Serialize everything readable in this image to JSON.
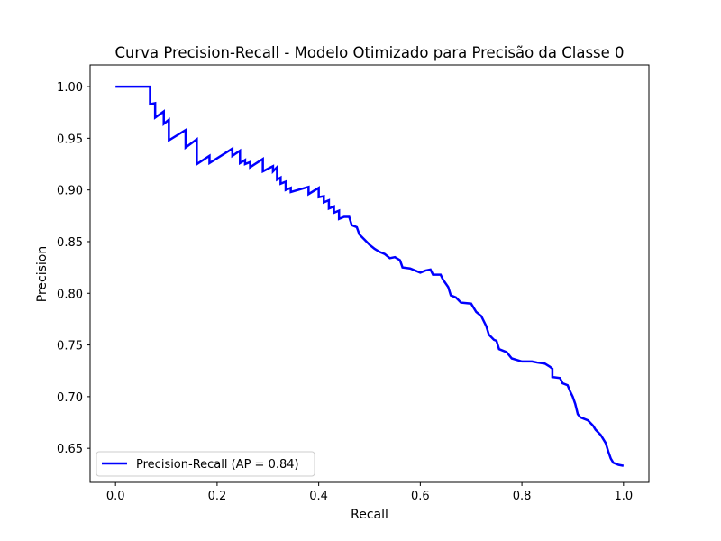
{
  "chart_data": {
    "type": "line",
    "title": "Curva Precision-Recall - Modelo Otimizado para Precisão da Classe 0",
    "xlabel": "Recall",
    "ylabel": "Precision",
    "xlim": [
      -0.05,
      1.05
    ],
    "ylim": [
      0.617,
      1.021
    ],
    "xticks": [
      0.0,
      0.2,
      0.4,
      0.6,
      0.8,
      1.0
    ],
    "xtick_labels": [
      "0.0",
      "0.2",
      "0.4",
      "0.6",
      "0.8",
      "1.0"
    ],
    "yticks": [
      0.65,
      0.7,
      0.75,
      0.8,
      0.85,
      0.9,
      0.95,
      1.0
    ],
    "ytick_labels": [
      "0.65",
      "0.70",
      "0.75",
      "0.80",
      "0.85",
      "0.90",
      "0.95",
      "1.00"
    ],
    "grid": false,
    "legend_position": "lower-left",
    "series": [
      {
        "name": "Precision-Recall (AP = 0.84)",
        "color": "#0000ff",
        "points": [
          [
            0.0,
            1.0
          ],
          [
            0.068,
            1.0
          ],
          [
            0.068,
            0.983
          ],
          [
            0.078,
            0.984
          ],
          [
            0.078,
            0.97
          ],
          [
            0.095,
            0.976
          ],
          [
            0.095,
            0.964
          ],
          [
            0.105,
            0.968
          ],
          [
            0.105,
            0.948
          ],
          [
            0.138,
            0.958
          ],
          [
            0.138,
            0.941
          ],
          [
            0.16,
            0.949
          ],
          [
            0.16,
            0.925
          ],
          [
            0.185,
            0.933
          ],
          [
            0.185,
            0.926
          ],
          [
            0.23,
            0.94
          ],
          [
            0.23,
            0.933
          ],
          [
            0.245,
            0.938
          ],
          [
            0.245,
            0.926
          ],
          [
            0.255,
            0.929
          ],
          [
            0.255,
            0.925
          ],
          [
            0.265,
            0.927
          ],
          [
            0.265,
            0.922
          ],
          [
            0.29,
            0.93
          ],
          [
            0.29,
            0.918
          ],
          [
            0.31,
            0.923
          ],
          [
            0.31,
            0.918
          ],
          [
            0.318,
            0.922
          ],
          [
            0.318,
            0.91
          ],
          [
            0.325,
            0.912
          ],
          [
            0.325,
            0.906
          ],
          [
            0.335,
            0.908
          ],
          [
            0.335,
            0.9
          ],
          [
            0.345,
            0.902
          ],
          [
            0.345,
            0.898
          ],
          [
            0.38,
            0.903
          ],
          [
            0.38,
            0.896
          ],
          [
            0.4,
            0.902
          ],
          [
            0.4,
            0.893
          ],
          [
            0.41,
            0.894
          ],
          [
            0.41,
            0.888
          ],
          [
            0.42,
            0.89
          ],
          [
            0.42,
            0.882
          ],
          [
            0.43,
            0.884
          ],
          [
            0.43,
            0.878
          ],
          [
            0.44,
            0.88
          ],
          [
            0.44,
            0.872
          ],
          [
            0.45,
            0.874
          ],
          [
            0.46,
            0.874
          ],
          [
            0.465,
            0.866
          ],
          [
            0.475,
            0.864
          ],
          [
            0.48,
            0.857
          ],
          [
            0.49,
            0.852
          ],
          [
            0.5,
            0.847
          ],
          [
            0.51,
            0.843
          ],
          [
            0.52,
            0.84
          ],
          [
            0.53,
            0.838
          ],
          [
            0.54,
            0.834
          ],
          [
            0.55,
            0.835
          ],
          [
            0.56,
            0.832
          ],
          [
            0.565,
            0.825
          ],
          [
            0.58,
            0.824
          ],
          [
            0.59,
            0.822
          ],
          [
            0.6,
            0.82
          ],
          [
            0.61,
            0.822
          ],
          [
            0.62,
            0.823
          ],
          [
            0.625,
            0.818
          ],
          [
            0.64,
            0.818
          ],
          [
            0.645,
            0.813
          ],
          [
            0.655,
            0.806
          ],
          [
            0.66,
            0.798
          ],
          [
            0.67,
            0.796
          ],
          [
            0.68,
            0.791
          ],
          [
            0.7,
            0.79
          ],
          [
            0.71,
            0.782
          ],
          [
            0.72,
            0.778
          ],
          [
            0.73,
            0.768
          ],
          [
            0.735,
            0.76
          ],
          [
            0.745,
            0.755
          ],
          [
            0.75,
            0.754
          ],
          [
            0.755,
            0.746
          ],
          [
            0.77,
            0.743
          ],
          [
            0.78,
            0.737
          ],
          [
            0.8,
            0.734
          ],
          [
            0.82,
            0.734
          ],
          [
            0.83,
            0.733
          ],
          [
            0.845,
            0.732
          ],
          [
            0.855,
            0.729
          ],
          [
            0.86,
            0.727
          ],
          [
            0.86,
            0.719
          ],
          [
            0.875,
            0.718
          ],
          [
            0.88,
            0.713
          ],
          [
            0.89,
            0.711
          ],
          [
            0.895,
            0.705
          ],
          [
            0.9,
            0.7
          ],
          [
            0.905,
            0.693
          ],
          [
            0.91,
            0.683
          ],
          [
            0.915,
            0.68
          ],
          [
            0.93,
            0.677
          ],
          [
            0.94,
            0.672
          ],
          [
            0.945,
            0.668
          ],
          [
            0.955,
            0.663
          ],
          [
            0.965,
            0.655
          ],
          [
            0.97,
            0.647
          ],
          [
            0.975,
            0.64
          ],
          [
            0.98,
            0.636
          ],
          [
            0.99,
            0.634
          ],
          [
            1.0,
            0.633
          ]
        ]
      }
    ]
  }
}
